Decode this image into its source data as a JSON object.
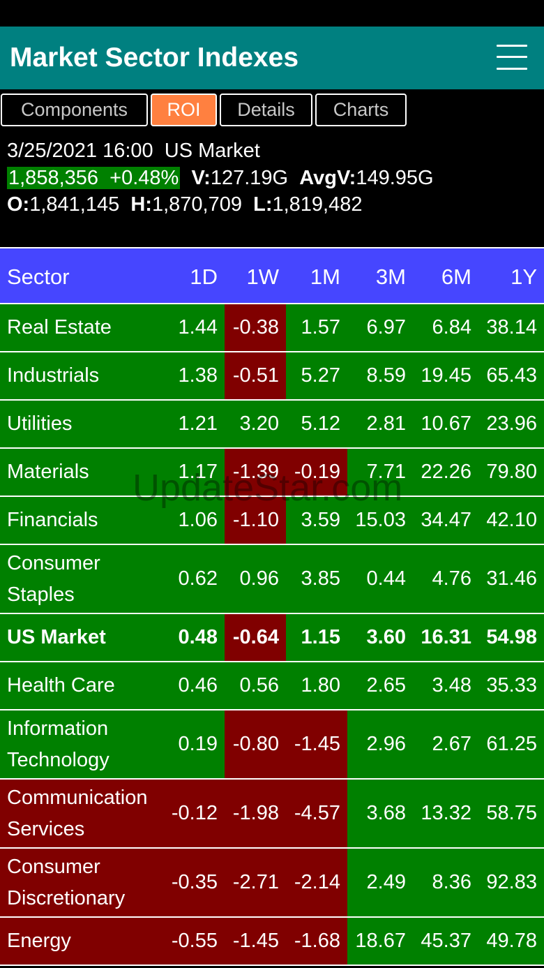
{
  "app": {
    "title": "Market Sector Indexes"
  },
  "tabs": [
    {
      "label": "Components",
      "active": false
    },
    {
      "label": "ROI",
      "active": true
    },
    {
      "label": "Details",
      "active": false
    },
    {
      "label": "Charts",
      "active": false
    }
  ],
  "summary": {
    "datetime": "3/25/2021 16:00",
    "market": "US Market",
    "price": "1,858,356",
    "change": "+0.48%",
    "volume_label": "V:",
    "volume": "127.19G",
    "avg_volume_label": "AvgV:",
    "avg_volume": "149.95G",
    "open_label": "O:",
    "open": "1,841,145",
    "high_label": "H:",
    "high": "1,870,709",
    "low_label": "L:",
    "low": "1,819,482"
  },
  "table": {
    "headers": [
      "Sector",
      "1D",
      "1W",
      "1M",
      "3M",
      "6M",
      "1Y"
    ],
    "rows": [
      {
        "name": "Real Estate",
        "values": [
          "1.44",
          "-0.38",
          "1.57",
          "6.97",
          "6.84",
          "38.14"
        ]
      },
      {
        "name": "Industrials",
        "values": [
          "1.38",
          "-0.51",
          "5.27",
          "8.59",
          "19.45",
          "65.43"
        ]
      },
      {
        "name": "Utilities",
        "values": [
          "1.21",
          "3.20",
          "5.12",
          "2.81",
          "10.67",
          "23.96"
        ]
      },
      {
        "name": "Materials",
        "values": [
          "1.17",
          "-1.39",
          "-0.19",
          "7.71",
          "22.26",
          "79.80"
        ]
      },
      {
        "name": "Financials",
        "values": [
          "1.06",
          "-1.10",
          "3.59",
          "15.03",
          "34.47",
          "42.10"
        ]
      },
      {
        "name": "Consumer Staples",
        "values": [
          "0.62",
          "0.96",
          "3.85",
          "0.44",
          "4.76",
          "31.46"
        ]
      },
      {
        "name": "US Market",
        "values": [
          "0.48",
          "-0.64",
          "1.15",
          "3.60",
          "16.31",
          "54.98"
        ]
      },
      {
        "name": "Health Care",
        "values": [
          "0.46",
          "0.56",
          "1.80",
          "2.65",
          "3.48",
          "35.33"
        ]
      },
      {
        "name": "Information Technology",
        "values": [
          "0.19",
          "-0.80",
          "-1.45",
          "2.96",
          "2.67",
          "61.25"
        ]
      },
      {
        "name": "Communication Services",
        "values": [
          "-0.12",
          "-1.98",
          "-4.57",
          "3.68",
          "13.32",
          "58.75"
        ]
      },
      {
        "name": "Consumer Discretionary",
        "values": [
          "-0.35",
          "-2.71",
          "-2.14",
          "2.49",
          "8.36",
          "92.83"
        ]
      },
      {
        "name": "Energy",
        "values": [
          "-0.55",
          "-1.45",
          "-1.68",
          "18.67",
          "45.37",
          "49.78"
        ]
      }
    ]
  },
  "watermark": "UpdateStar.com",
  "colors": {
    "appbar": "#008080",
    "active_tab": "#ff8040",
    "header": "#4646ff",
    "positive": "#008000",
    "negative": "#800000"
  }
}
